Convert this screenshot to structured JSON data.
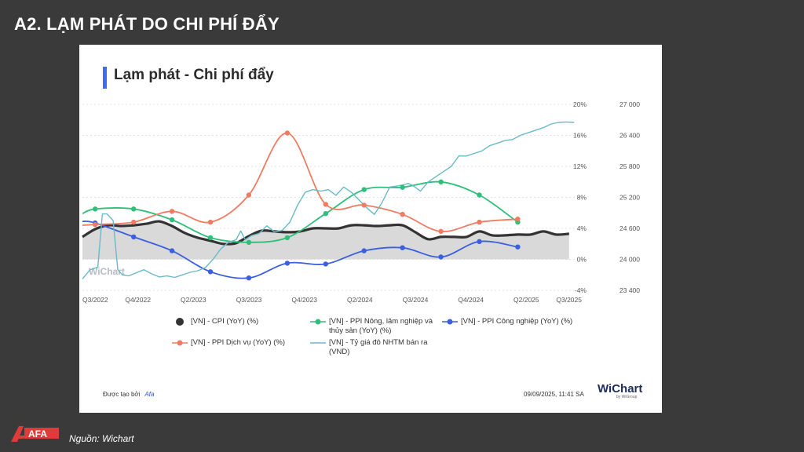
{
  "slide": {
    "title": "A2. LẠM PHÁT DO CHI PHÍ ĐẨY",
    "source": "Nguồn: Wichart",
    "logo_text": "AFA"
  },
  "card": {
    "title": "Lạm phát - Chi phí đẩy",
    "created_by_label": "Được tạo bởi",
    "created_by_brand": "Afa",
    "timestamp": "09/09/2025, 11:41 SA",
    "logo": "WiChart",
    "logo_sub": "by WiGroup",
    "watermark": "WiChart"
  },
  "colors": {
    "cpi": "#333333",
    "ppi_agri": "#2fbf7a",
    "ppi_ind": "#3b5fe0",
    "ppi_service": "#ef7b63",
    "fx": "#6bb9c8",
    "cpi_fill": "#d9d9d9",
    "accent": "#3a6df0"
  },
  "chart_data": {
    "type": "line",
    "x_ticks": [
      "Q3/2022",
      "Q4/2022",
      "Q2/2023",
      "Q3/2023",
      "Q4/2023",
      "Q2/2024",
      "Q3/2024",
      "Q4/2024",
      "Q2/2025",
      "Q3/2025"
    ],
    "x_range": [
      2022.5,
      2025.75
    ],
    "y_left": {
      "range": [
        -4,
        20
      ],
      "ticks": [
        "-4%",
        "0%",
        "4%",
        "8%",
        "12%",
        "16%",
        "20%"
      ]
    },
    "y_right": {
      "range": [
        23400,
        27000
      ],
      "ticks": [
        "23 400",
        "24 000",
        "24 600",
        "25 200",
        "25 800",
        "26 400",
        "27 000"
      ]
    },
    "legend": [
      {
        "key": "cpi",
        "label": "[VN] - CPI (YoY) (%)"
      },
      {
        "key": "ppi_agri",
        "label": "[VN] - PPI Nông, lâm nghiệp và thủy sản (YoY) (%)"
      },
      {
        "key": "ppi_ind",
        "label": "[VN] - PPI Công nghiệp (YoY) (%)"
      },
      {
        "key": "ppi_service",
        "label": "[VN] - PPI Dịch vụ (YoY) (%)"
      },
      {
        "key": "fx",
        "label": "[VN] - Tỷ giá đô NHTM bán ra (VND)"
      }
    ],
    "series": [
      {
        "key": "cpi",
        "axis": "left",
        "style": "area",
        "x": [
          2022.5,
          2022.583,
          2022.667,
          2022.75,
          2022.833,
          2022.917,
          2023.0,
          2023.083,
          2023.167,
          2023.25,
          2023.333,
          2023.417,
          2023.5,
          2023.583,
          2023.667,
          2023.75,
          2023.833,
          2023.917,
          2024.0,
          2024.083,
          2024.167,
          2024.25,
          2024.333,
          2024.417,
          2024.5,
          2024.583,
          2024.667,
          2024.75,
          2024.833,
          2024.917,
          2025.0,
          2025.083,
          2025.167,
          2025.25,
          2025.333,
          2025.417,
          2025.5,
          2025.583,
          2025.667
        ],
        "y": [
          2.9,
          3.9,
          4.4,
          4.3,
          4.4,
          4.6,
          4.9,
          4.3,
          3.4,
          2.8,
          2.4,
          2.0,
          2.1,
          3.0,
          3.7,
          3.6,
          3.5,
          3.6,
          4.0,
          4.0,
          4.0,
          4.4,
          4.4,
          4.3,
          4.4,
          4.4,
          3.5,
          2.6,
          2.9,
          2.9,
          2.9,
          3.6,
          3.1,
          3.1,
          3.2,
          3.2,
          3.6,
          3.2,
          3.3
        ]
      },
      {
        "key": "ppi_agri",
        "axis": "left",
        "style": "markers",
        "x": [
          2022.5,
          2022.583,
          2022.833,
          2023.083,
          2023.333,
          2023.583,
          2023.833,
          2024.083,
          2024.333,
          2024.583,
          2024.833,
          2025.083,
          2025.333
        ],
        "y": [
          5.9,
          6.5,
          6.5,
          5.1,
          2.8,
          2.2,
          2.8,
          5.9,
          9.0,
          9.3,
          10.0,
          8.3,
          4.8
        ],
        "markers": [
          false,
          true,
          true,
          true,
          true,
          true,
          true,
          true,
          true,
          true,
          true,
          true,
          true
        ]
      },
      {
        "key": "ppi_ind",
        "axis": "left",
        "style": "markers",
        "x": [
          2022.5,
          2022.583,
          2022.833,
          2023.083,
          2023.333,
          2023.583,
          2023.833,
          2024.083,
          2024.333,
          2024.583,
          2024.833,
          2025.083,
          2025.333
        ],
        "y": [
          4.9,
          4.7,
          2.9,
          1.1,
          -1.6,
          -2.4,
          -0.5,
          -0.6,
          1.1,
          1.5,
          0.3,
          2.3,
          1.6
        ],
        "markers": [
          false,
          true,
          true,
          true,
          true,
          true,
          true,
          true,
          true,
          true,
          true,
          true,
          true
        ]
      },
      {
        "key": "ppi_service",
        "axis": "left",
        "style": "markers",
        "x": [
          2022.5,
          2022.583,
          2022.833,
          2023.083,
          2023.333,
          2023.583,
          2023.833,
          2024.083,
          2024.333,
          2024.583,
          2024.833,
          2025.083,
          2025.333
        ],
        "y": [
          4.4,
          4.5,
          4.8,
          6.2,
          4.8,
          8.3,
          16.3,
          7.1,
          7.0,
          5.8,
          3.6,
          4.8,
          5.2
        ],
        "markers": [
          false,
          true,
          true,
          true,
          true,
          true,
          true,
          true,
          true,
          true,
          true,
          true,
          true
        ]
      },
      {
        "key": "fx",
        "axis": "right",
        "style": "line",
        "x": [
          2022.5,
          2022.55,
          2022.6,
          2022.63,
          2022.66,
          2022.7,
          2022.73,
          2022.76,
          2022.8,
          2022.85,
          2022.9,
          2022.95,
          2023.0,
          2023.05,
          2023.1,
          2023.15,
          2023.2,
          2023.25,
          2023.3,
          2023.35,
          2023.4,
          2023.45,
          2023.5,
          2023.53,
          2023.56,
          2023.6,
          2023.65,
          2023.7,
          2023.75,
          2023.8,
          2023.85,
          2023.9,
          2023.95,
          2024.0,
          2024.05,
          2024.1,
          2024.15,
          2024.2,
          2024.25,
          2024.3,
          2024.35,
          2024.4,
          2024.45,
          2024.5,
          2024.55,
          2024.6,
          2024.62,
          2024.65,
          2024.7,
          2024.75,
          2024.8,
          2024.85,
          2024.9,
          2024.95,
          2025.0,
          2025.05,
          2025.1,
          2025.15,
          2025.2,
          2025.25,
          2025.3,
          2025.35,
          2025.4,
          2025.45,
          2025.5,
          2025.55,
          2025.6,
          2025.65,
          2025.7
        ],
        "y": [
          23620,
          23800,
          23850,
          24880,
          24880,
          24750,
          23800,
          23700,
          23680,
          23740,
          23800,
          23720,
          23660,
          23680,
          23650,
          23700,
          23750,
          23780,
          23840,
          24000,
          24200,
          24330,
          24380,
          24550,
          24380,
          24460,
          24500,
          24650,
          24530,
          24560,
          24720,
          25050,
          25300,
          25350,
          25320,
          25350,
          25240,
          25400,
          25300,
          25150,
          25000,
          24870,
          25100,
          25400,
          25420,
          25450,
          25470,
          25430,
          25320,
          25500,
          25600,
          25700,
          25800,
          26000,
          26000,
          26050,
          26100,
          26200,
          26250,
          26300,
          26320,
          26400,
          26450,
          26500,
          26550,
          26620,
          26650,
          26660,
          26650
        ]
      }
    ]
  }
}
